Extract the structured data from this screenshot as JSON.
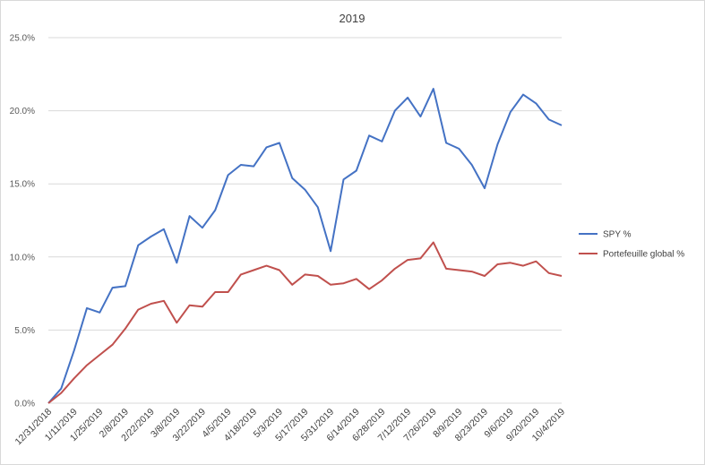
{
  "chart_data": {
    "type": "line",
    "title": "2019",
    "xlabel": "",
    "ylabel": "",
    "ylim": [
      0,
      25
    ],
    "y_ticks": [
      "0.0%",
      "5.0%",
      "10.0%",
      "15.0%",
      "20.0%",
      "25.0%"
    ],
    "grid": "horizontal",
    "legend_position": "right",
    "x_tick_labels": [
      "12/31/2018",
      "1/11/2019",
      "1/25/2019",
      "2/8/2019",
      "2/22/2019",
      "3/8/2019",
      "3/22/2019",
      "4/5/2019",
      "4/18/2019",
      "5/3/2019",
      "5/17/2019",
      "5/31/2019",
      "6/14/2019",
      "6/28/2019",
      "7/12/2019",
      "7/26/2019",
      "8/9/2019",
      "8/23/2019",
      "9/6/2019",
      "9/20/2019",
      "10/4/2019"
    ],
    "x": [
      "12/31/2018",
      "1/4/2019",
      "1/11/2019",
      "1/18/2019",
      "1/25/2019",
      "2/1/2019",
      "2/8/2019",
      "2/15/2019",
      "2/22/2019",
      "3/1/2019",
      "3/8/2019",
      "3/15/2019",
      "3/22/2019",
      "3/29/2019",
      "4/5/2019",
      "4/12/2019",
      "4/18/2019",
      "4/26/2019",
      "5/3/2019",
      "5/10/2019",
      "5/17/2019",
      "5/24/2019",
      "5/31/2019",
      "6/7/2019",
      "6/14/2019",
      "6/21/2019",
      "6/28/2019",
      "7/5/2019",
      "7/12/2019",
      "7/19/2019",
      "7/26/2019",
      "8/2/2019",
      "8/9/2019",
      "8/16/2019",
      "8/23/2019",
      "8/30/2019",
      "9/6/2019",
      "9/13/2019",
      "9/20/2019",
      "9/27/2019",
      "10/4/2019"
    ],
    "series": [
      {
        "name": "SPY %",
        "color": "#4472C4",
        "values": [
          0.0,
          1.0,
          3.6,
          6.5,
          6.2,
          7.9,
          8.0,
          10.8,
          11.4,
          11.9,
          9.6,
          12.8,
          12.0,
          13.2,
          15.6,
          16.3,
          16.2,
          17.5,
          17.8,
          15.4,
          14.6,
          13.4,
          10.4,
          15.3,
          15.9,
          18.3,
          17.9,
          20.0,
          20.9,
          19.6,
          21.5,
          17.8,
          17.4,
          16.3,
          14.7,
          17.7,
          19.9,
          21.1,
          20.5,
          19.4,
          19.0
        ]
      },
      {
        "name": "Portefeuille global %",
        "color": "#C0504D",
        "values": [
          0.0,
          0.7,
          1.7,
          2.6,
          3.3,
          4.0,
          5.1,
          6.4,
          6.8,
          7.0,
          5.5,
          6.7,
          6.6,
          7.6,
          7.6,
          8.8,
          9.1,
          9.4,
          9.1,
          8.1,
          8.8,
          8.7,
          8.1,
          8.2,
          8.5,
          7.8,
          8.4,
          9.2,
          9.8,
          9.9,
          11.0,
          9.2,
          9.1,
          9.0,
          8.7,
          9.5,
          9.6,
          9.4,
          9.7,
          8.9,
          8.7
        ]
      }
    ]
  }
}
